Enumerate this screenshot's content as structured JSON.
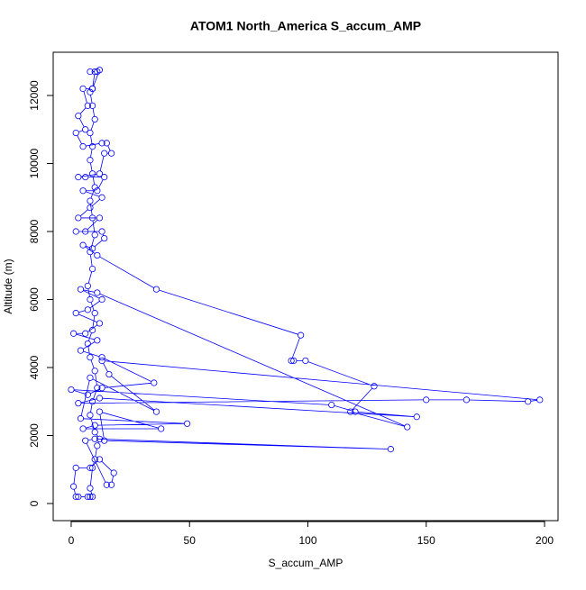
{
  "chart_data": {
    "type": "line",
    "title": "ATOM1 North_America S_accum_AMP",
    "xlabel": "S_accum_AMP",
    "ylabel": "Altitude (m)",
    "x": [
      8,
      9,
      8,
      9,
      10,
      11,
      12,
      10,
      8,
      9,
      11,
      10,
      8,
      7,
      9,
      10,
      8,
      7,
      9,
      8,
      10,
      9,
      8,
      10,
      9,
      8,
      9,
      8,
      10,
      9,
      8,
      9,
      10,
      8,
      11,
      12,
      9,
      5,
      7,
      3,
      6,
      2,
      5,
      13,
      15,
      17,
      14,
      12,
      3,
      6,
      14,
      11,
      5,
      13,
      8,
      3,
      12,
      6,
      2,
      13,
      14,
      9,
      5,
      11,
      36,
      97,
      93,
      94,
      99,
      128,
      118,
      142,
      11,
      4,
      13,
      7,
      2,
      12,
      6,
      1,
      11,
      4,
      13,
      35,
      13,
      7,
      0,
      110,
      120,
      146,
      12,
      3,
      150,
      167,
      193,
      198,
      13,
      16,
      36,
      8,
      4,
      49,
      10,
      5,
      38,
      12,
      14,
      135,
      10,
      6,
      15,
      17,
      18,
      12,
      8,
      2,
      1,
      2,
      3,
      7
    ],
    "series": [
      {
        "color": "#0000ff",
        "values": [
          200,
          200,
          450,
          1050,
          1300,
          1700,
          1900,
          2100,
          2600,
          3000,
          3400,
          3900,
          4300,
          4700,
          5100,
          5600,
          6000,
          6400,
          6900,
          7400,
          7900,
          8400,
          8900,
          9300,
          9700,
          10100,
          10500,
          10900,
          11300,
          11700,
          12100,
          12200,
          12700,
          12700,
          12700,
          12750,
          12200,
          12200,
          11700,
          11400,
          11000,
          10900,
          10500,
          10600,
          10600,
          10300,
          10300,
          9700,
          9600,
          9600,
          9600,
          9200,
          9200,
          9000,
          8700,
          8400,
          8400,
          8000,
          8000,
          8000,
          7800,
          7500,
          7600,
          7300,
          6300,
          4950,
          4200,
          4200,
          4200,
          3450,
          2700,
          2250,
          6200,
          6300,
          6000,
          5700,
          5600,
          5300,
          5000,
          5000,
          4800,
          4500,
          4300,
          3550,
          3400,
          3200,
          3350,
          2900,
          2700,
          2550,
          3100,
          2950,
          3050,
          3050,
          3000,
          3050,
          4200,
          3800,
          2700,
          3700,
          2500,
          2350,
          2300,
          2200,
          2200,
          2700,
          1850,
          1600,
          1900,
          1850,
          550,
          550,
          900,
          1300,
          1050,
          1050,
          500,
          200,
          200,
          200
        ]
      }
    ],
    "xlim": [
      -7.6,
      205.7
    ],
    "xticks": [
      0,
      50,
      100,
      150,
      200
    ],
    "ylim": [
      -503,
      13272
    ],
    "yticks": [
      0,
      2000,
      4000,
      6000,
      8000,
      10000,
      12000
    ]
  }
}
